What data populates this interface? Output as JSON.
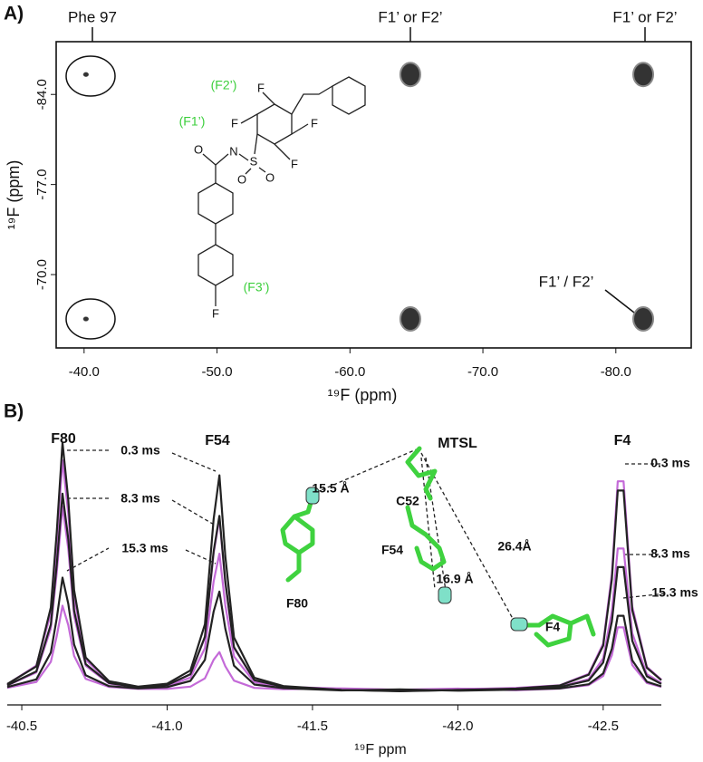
{
  "chart_data": [
    {
      "type": "scatter",
      "panel_label": "A)",
      "x_label": "¹⁹F (ppm)",
      "y_label": "¹⁹F (ppm)",
      "xlim": [
        -37.9,
        -85.67
      ],
      "ylim": [
        -64.3,
        -88.1
      ],
      "xticks": [
        {
          "value": -40,
          "label": "-40.0"
        },
        {
          "value": -50,
          "label": "-50.0"
        },
        {
          "value": -60,
          "label": "-60.0"
        },
        {
          "value": -70,
          "label": "-70.0"
        },
        {
          "value": -80,
          "label": "-80.0"
        }
      ],
      "yticks": [
        {
          "value": -84,
          "label": "-84.0"
        },
        {
          "value": -77,
          "label": "-77.0"
        },
        {
          "value": -70,
          "label": "-70.0"
        }
      ],
      "series": [
        {
          "color": "#333333",
          "x": [
            -40.14,
            -64.54,
            -82.06,
            -40.14,
            -64.54,
            -82.06
          ],
          "values": [
            -85.55,
            -85.55,
            -85.55,
            -66.55,
            -66.55,
            -66.55
          ]
        }
      ],
      "annotations": [
        "Phe 97",
        "F1’ or F2’",
        "F1’ or F2’",
        "F1’ / F2’",
        "(F2’)",
        "(F1’)",
        "(F3’)"
      ],
      "molecule_atoms": [
        "F",
        "F",
        "F",
        "F",
        "N",
        "S",
        "O",
        "O",
        "O",
        "F"
      ]
    },
    {
      "type": "line",
      "panel_label": "B)",
      "x_label": "¹⁹F ppm",
      "xlim": [
        -40.45,
        -42.7
      ],
      "ylim": [
        0,
        102
      ],
      "xticks": [
        -40.5,
        {
          "value": -41,
          "label": "-41.0"
        },
        -41.5,
        {
          "value": -42,
          "label": "-42.0"
        },
        -42.5
      ],
      "x": [
        -40.45,
        -40.55,
        -40.6,
        -40.62,
        -40.64,
        -40.66,
        -40.68,
        -40.72,
        -40.8,
        -40.9,
        -41.0,
        -41.08,
        -41.13,
        -41.16,
        -41.18,
        -41.2,
        -41.23,
        -41.3,
        -41.4,
        -41.6,
        -41.8,
        -42.0,
        -42.2,
        -42.35,
        -42.45,
        -42.5,
        -42.53,
        -42.55,
        -42.57,
        -42.6,
        -42.65,
        -42.7
      ],
      "series": [
        {
          "color": "#c46ad8",
          "values": [
            5.2,
            12.5,
            32.7,
            59.7,
            92.1,
            71.4,
            39,
            14.7,
            6.2,
            4.2,
            4.9,
            9.1,
            23.4,
            56,
            69.6,
            44.5,
            19.3,
            6.7,
            4.2,
            3.5,
            3,
            3.2,
            3.8,
            4.8,
            9.2,
            21,
            48,
            84,
            84,
            35.4,
            12,
            7
          ]
        },
        {
          "color": "#c46ad8",
          "values": [
            4.7,
            9.8,
            26.8,
            48.4,
            74.3,
            57.7,
            31.8,
            12.4,
            5.5,
            3.9,
            4.5,
            7.8,
            19.2,
            45.1,
            55.9,
            35.9,
            16,
            6,
            4,
            3.3,
            2.8,
            3.4,
            3.6,
            4.2,
            7.2,
            15.2,
            33.5,
            57.9,
            57.9,
            25,
            9.1,
            5.7
          ]
        },
        {
          "color": "#c46ad8",
          "values": [
            3.8,
            6.1,
            13.9,
            23.8,
            35.7,
            28.1,
            16.2,
            7.3,
            4.2,
            3.4,
            3.4,
            4.3,
            7.5,
            14.7,
            17.7,
            12.2,
            6.6,
            3.8,
            3.3,
            3.6,
            3.1,
            3.5,
            2.9,
            3.5,
            4.9,
            8.4,
            16.5,
            27.3,
            27.3,
            12.7,
            5.7,
            4.2
          ]
        },
        {
          "color": "#222222",
          "values": [
            5.3,
            12.1,
            35,
            64.1,
            99,
            76.7,
            41.8,
            15.6,
            6.4,
            4.3,
            5.4,
            10.6,
            28.5,
            69.3,
            86.3,
            54.9,
            23.4,
            7.7,
            4.5,
            3,
            2.5,
            3,
            3.5,
            4.7,
            8.9,
            20.2,
            46,
            80.4,
            80.4,
            34,
            11.6,
            6.8
          ]
        },
        {
          "color": "#222222",
          "values": [
            4.8,
            10.2,
            28.4,
            51.5,
            79.2,
            61.5,
            33.8,
            13,
            5.7,
            4,
            4.9,
            9.1,
            23.7,
            56.8,
            70.6,
            45.1,
            19.6,
            6.8,
            4.2,
            3,
            2.6,
            3,
            3.3,
            4.1,
            6.7,
            13.6,
            29.5,
            50.7,
            50.7,
            22.1,
            8.3,
            5.3
          ]
        },
        {
          "color": "#222222",
          "values": [
            4.1,
            7.1,
            17.5,
            30.7,
            46.6,
            36.4,
            20.6,
            8.7,
            4.5,
            3.6,
            4.1,
            6.5,
            14.7,
            33.4,
            41.2,
            26.8,
            12.4,
            5.1,
            3.7,
            2.8,
            3.2,
            2.7,
            3.1,
            3.6,
            5.2,
            9.4,
            19,
            31.8,
            31.8,
            14.5,
            6.2,
            4.4
          ]
        }
      ],
      "annotations": [
        "F80",
        "F54",
        "MTSL",
        "F4",
        "0.3 ms",
        "8.3 ms",
        "15.3 ms",
        "0.3 ms",
        "8.3 ms",
        "15.3 ms",
        "15.5 Å",
        "C52",
        "F54",
        "16.9 Å",
        "26.4Å",
        "F80",
        "F4"
      ]
    }
  ]
}
